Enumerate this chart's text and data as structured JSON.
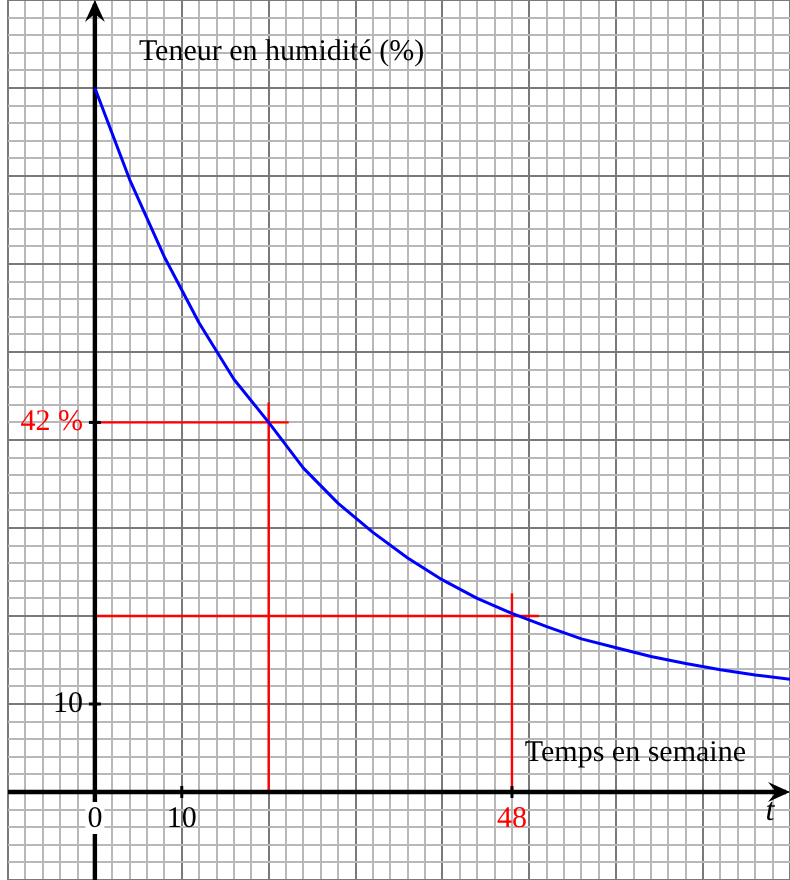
{
  "chart_data": {
    "type": "line",
    "xlabel": "t",
    "ylabel": "Teneur en humidité (%)",
    "annotations": [
      "Temps en semaine"
    ],
    "xlim": [
      -10,
      80
    ],
    "ylim": [
      -10,
      90
    ],
    "xticks": [
      0,
      10,
      {
        "value": 48,
        "label": "48"
      }
    ],
    "yticks": [
      10,
      {
        "value": 42,
        "label": "42 %"
      }
    ],
    "grid": true,
    "marker": "none",
    "line_style": "solid",
    "ref_lines": [
      {
        "axis": "y",
        "value": 42,
        "color": "#ff0000"
      },
      {
        "axis": "x",
        "value": 20,
        "color": "#ff0000"
      },
      {
        "axis": "x",
        "value": 48,
        "color": "#ff0000"
      },
      {
        "axis": "y",
        "value": 20,
        "color": "#ff0000"
      }
    ],
    "series": [
      {
        "type": "line",
        "color": "#0000ff",
        "x": [
          0,
          4,
          8,
          12,
          16,
          20,
          24,
          28,
          32,
          36,
          40,
          44,
          48,
          52,
          56,
          60,
          64,
          68,
          72,
          76,
          80
        ],
        "values": [
          80,
          69.6,
          60.8,
          53.3,
          46.9,
          42,
          36.8,
          32.8,
          29.5,
          26.6,
          24.1,
          22,
          20.3,
          18.8,
          17.4,
          16.4,
          15.4,
          14.6,
          13.9,
          13.3,
          12.8
        ]
      }
    ]
  }
}
